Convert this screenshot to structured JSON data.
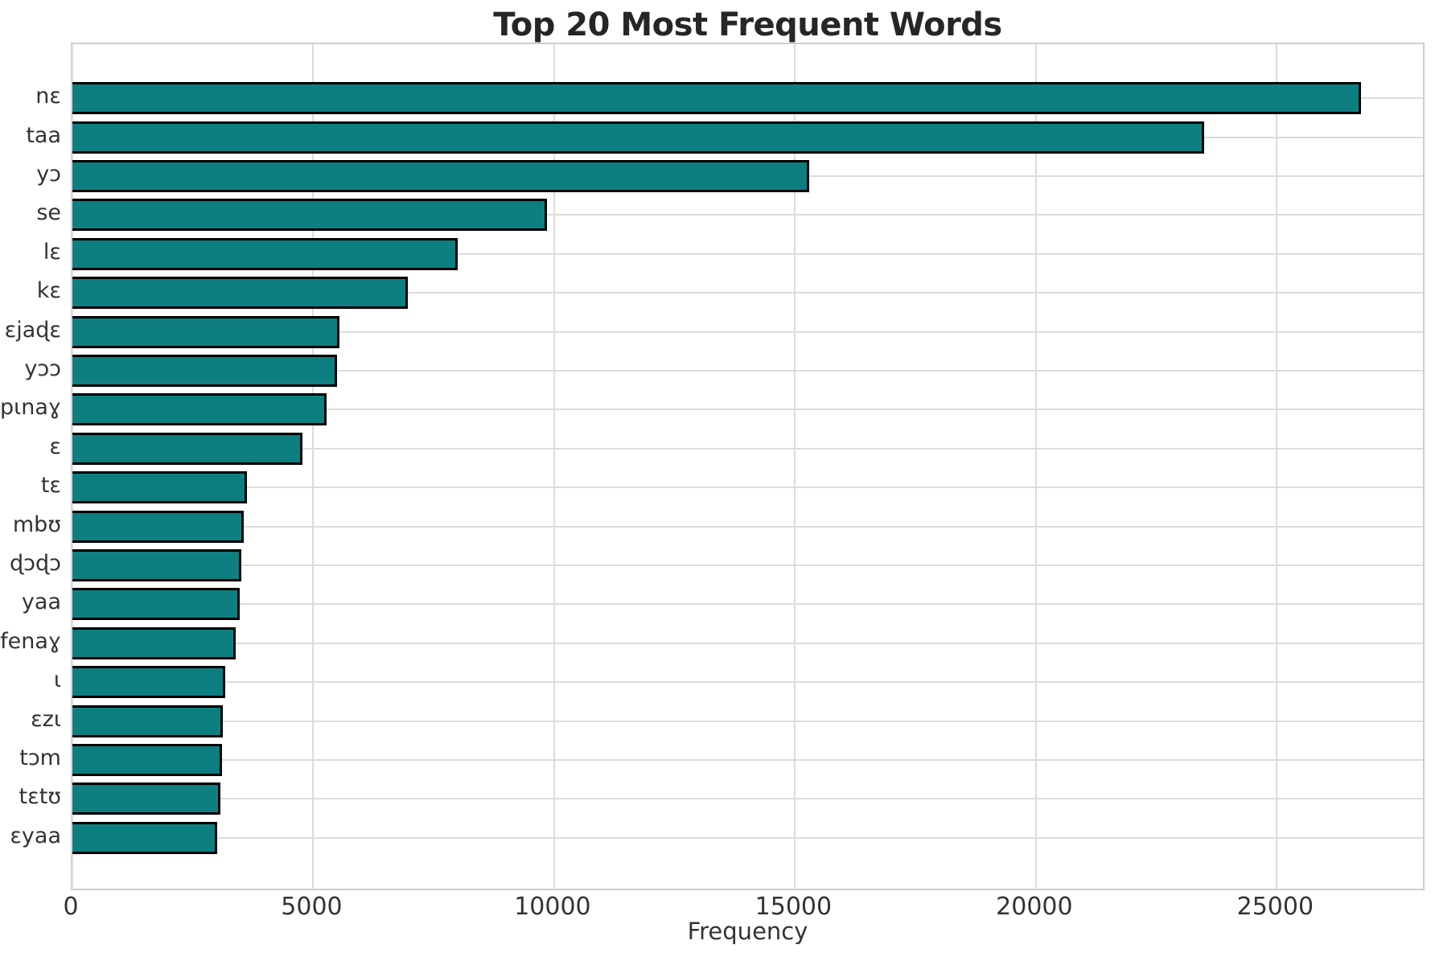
{
  "page": {
    "background": "#ffffff"
  },
  "chart_data": {
    "type": "bar",
    "orientation": "horizontal",
    "title": "Top 20 Most Frequent Words",
    "xlabel": "Frequency",
    "ylabel": "",
    "categories": [
      "nɛ",
      "taa",
      "yɔ",
      "se",
      "lɛ",
      "kɛ",
      "ɛjaɖɛ",
      "yɔɔ",
      "pɩnaɣ",
      "ɛ",
      "tɛ",
      "mbʊ",
      "ɖɔɖɔ",
      "yaa",
      "fenaɣ",
      "ɩ",
      "ɛzɩ",
      "tɔm",
      "tɛtʊ",
      "ɛyaa"
    ],
    "values": [
      26750,
      23500,
      15300,
      9850,
      8000,
      6970,
      5550,
      5500,
      5280,
      4780,
      3630,
      3550,
      3500,
      3480,
      3390,
      3170,
      3130,
      3100,
      3080,
      3000
    ],
    "xlim": [
      0,
      28100
    ],
    "xticks": [
      0,
      5000,
      10000,
      15000,
      20000,
      25000
    ],
    "xtick_labels": [
      "0",
      "5000",
      "10000",
      "15000",
      "20000",
      "25000"
    ],
    "grid": true,
    "legend": false,
    "colors": {
      "bar_fill": "#0e7f81",
      "bar_edge": "#000000",
      "gridline": "#dcdcdc",
      "spine": "#cdcdcd",
      "title_text": "#262626",
      "tick_text": "#333333"
    }
  }
}
